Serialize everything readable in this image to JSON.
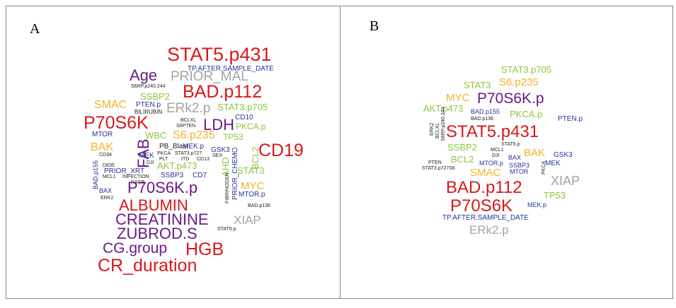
{
  "panels": [
    {
      "label": "A",
      "words": [
        {
          "text": "STAT5.p431",
          "color": "#d7191c"
        },
        {
          "text": "TP.AFTER.SAMPLE_DATE",
          "color": "#24339c"
        },
        {
          "text": "Age",
          "color": "#6a1b86"
        },
        {
          "text": "PRIOR_MAL",
          "color": "#a3a3a3"
        },
        {
          "text": "S6RP.p240.244",
          "color": "#222222"
        },
        {
          "text": "BAD.p112",
          "color": "#d7191c"
        },
        {
          "text": "SMAC",
          "color": "#f0b429"
        },
        {
          "text": "SSBP2",
          "color": "#8cc63f"
        },
        {
          "text": "PTEN.p",
          "color": "#24339c"
        },
        {
          "text": "ERk2.p",
          "color": "#a3a3a3"
        },
        {
          "text": "STAT3.p705",
          "color": "#8cc63f"
        },
        {
          "text": "BILIRUBIN",
          "color": "#222222"
        },
        {
          "text": "P70S6K",
          "color": "#d7191c"
        },
        {
          "text": "CD10",
          "color": "#24339c"
        },
        {
          "text": "BCLXL",
          "color": "#222222"
        },
        {
          "text": "S6PTEN",
          "color": "#222222"
        },
        {
          "text": "LDH",
          "color": "#6a1b86"
        },
        {
          "text": "PKCA.p",
          "color": "#8cc63f"
        },
        {
          "text": "MTOR",
          "color": "#24339c"
        },
        {
          "text": "WBC",
          "color": "#8cc63f"
        },
        {
          "text": "S6.p235",
          "color": "#f0b429"
        },
        {
          "text": "TP53",
          "color": "#8cc63f"
        },
        {
          "text": "FAB",
          "color": "#6a1b86"
        },
        {
          "text": "BCL2",
          "color": "#8cc63f"
        },
        {
          "text": "CD19",
          "color": "#d7191c"
        },
        {
          "text": "BAK",
          "color": "#f0b429"
        },
        {
          "text": "PB_Blast",
          "color": "#222222"
        },
        {
          "text": "MEK.p",
          "color": "#24339c"
        },
        {
          "text": "GSK3",
          "color": "#24339c"
        },
        {
          "text": "CD34",
          "color": "#222222"
        },
        {
          "text": "MEK",
          "color": "#24339c"
        },
        {
          "text": "PKCA",
          "color": "#222222"
        },
        {
          "text": "STAT3.p727",
          "color": "#222222"
        },
        {
          "text": "SEX",
          "color": "#222222"
        },
        {
          "text": "PLT",
          "color": "#222222"
        },
        {
          "text": "ITD",
          "color": "#222222"
        },
        {
          "text": "CD13",
          "color": "#222222"
        },
        {
          "text": "DJI",
          "color": "#222222"
        },
        {
          "text": "AKT.p473",
          "color": "#8cc63f"
        },
        {
          "text": "AHD",
          "color": "#8cc63f"
        },
        {
          "text": "PRIOR_CHEMO",
          "color": "#24339c"
        },
        {
          "text": "STAT3",
          "color": "#8cc63f"
        },
        {
          "text": "D835",
          "color": "#222222"
        },
        {
          "text": "PRIOR_XRT",
          "color": "#24339c"
        },
        {
          "text": "SSBP3",
          "color": "#24339c"
        },
        {
          "text": "CD7",
          "color": "#24339c"
        },
        {
          "text": "BAD.p155",
          "color": "#24339c"
        },
        {
          "text": "MCL1",
          "color": "#222222"
        },
        {
          "text": "INFECTION",
          "color": "#222222"
        },
        {
          "text": "RACE",
          "color": "#222222"
        },
        {
          "text": "P70S6K.p",
          "color": "#6a1b86"
        },
        {
          "text": "FIBRINOGEN",
          "color": "#222222"
        },
        {
          "text": "MYC",
          "color": "#f0b429"
        },
        {
          "text": "BAX",
          "color": "#24339c"
        },
        {
          "text": "MTOR.p",
          "color": "#24339c"
        },
        {
          "text": "ERK2",
          "color": "#222222"
        },
        {
          "text": "BAD.p136",
          "color": "#222222"
        },
        {
          "text": "ALBUMIN",
          "color": "#d7191c"
        },
        {
          "text": "CREATININE",
          "color": "#6a1b86"
        },
        {
          "text": "XIAP",
          "color": "#a3a3a3"
        },
        {
          "text": "STAT6.p",
          "color": "#222222"
        },
        {
          "text": "ZUBROD.S",
          "color": "#6a1b86"
        },
        {
          "text": "CG.group",
          "color": "#6a1b86"
        },
        {
          "text": "HGB",
          "color": "#d7191c"
        },
        {
          "text": "CR_duration",
          "color": "#d7191c"
        }
      ]
    },
    {
      "label": "B",
      "words": [
        {
          "text": "STAT3.p705",
          "color": "#8cc63f"
        },
        {
          "text": "STAT3",
          "color": "#8cc63f"
        },
        {
          "text": "S6.p235",
          "color": "#f0b429"
        },
        {
          "text": "MYC",
          "color": "#f0b429"
        },
        {
          "text": "P70S6K.p",
          "color": "#6a1b86"
        },
        {
          "text": "AKT.p473",
          "color": "#8cc63f"
        },
        {
          "text": "BAD.p155",
          "color": "#24339c"
        },
        {
          "text": "PKCA.p",
          "color": "#8cc63f"
        },
        {
          "text": "PTEN.p",
          "color": "#24339c"
        },
        {
          "text": "BAD.p136",
          "color": "#222222"
        },
        {
          "text": "ERK2",
          "color": "#222222"
        },
        {
          "text": "BCLXL",
          "color": "#222222"
        },
        {
          "text": "S6RP.p240.244",
          "color": "#222222"
        },
        {
          "text": "STAT5.p431",
          "color": "#d7191c"
        },
        {
          "text": "SSBP2",
          "color": "#8cc63f"
        },
        {
          "text": "MCL1",
          "color": "#222222"
        },
        {
          "text": "BAK",
          "color": "#f0b429"
        },
        {
          "text": "GSK3",
          "color": "#24339c"
        },
        {
          "text": "BCL2",
          "color": "#8cc63f"
        },
        {
          "text": "DJI",
          "color": "#222222"
        },
        {
          "text": "BAX",
          "color": "#24339c"
        },
        {
          "text": "MTOR.p",
          "color": "#24339c"
        },
        {
          "text": "SSBP3",
          "color": "#24339c"
        },
        {
          "text": "MEK",
          "color": "#24339c"
        },
        {
          "text": "PTEN",
          "color": "#222222"
        },
        {
          "text": "STAT3.p727S6",
          "color": "#222222"
        },
        {
          "text": "STAT6.p",
          "color": "#222222"
        },
        {
          "text": "SMAC",
          "color": "#f0b429"
        },
        {
          "text": "MTOR",
          "color": "#24339c"
        },
        {
          "text": "PKCA",
          "color": "#222222"
        },
        {
          "text": "XIAP",
          "color": "#a3a3a3"
        },
        {
          "text": "BAD.p112",
          "color": "#d7191c"
        },
        {
          "text": "TP53",
          "color": "#8cc63f"
        },
        {
          "text": "P70S6K",
          "color": "#d7191c"
        },
        {
          "text": "MEK.p",
          "color": "#24339c"
        },
        {
          "text": "TP.AFTER.SAMPLE_DATE",
          "color": "#24339c"
        },
        {
          "text": "ERk2.p",
          "color": "#a3a3a3"
        }
      ]
    }
  ]
}
